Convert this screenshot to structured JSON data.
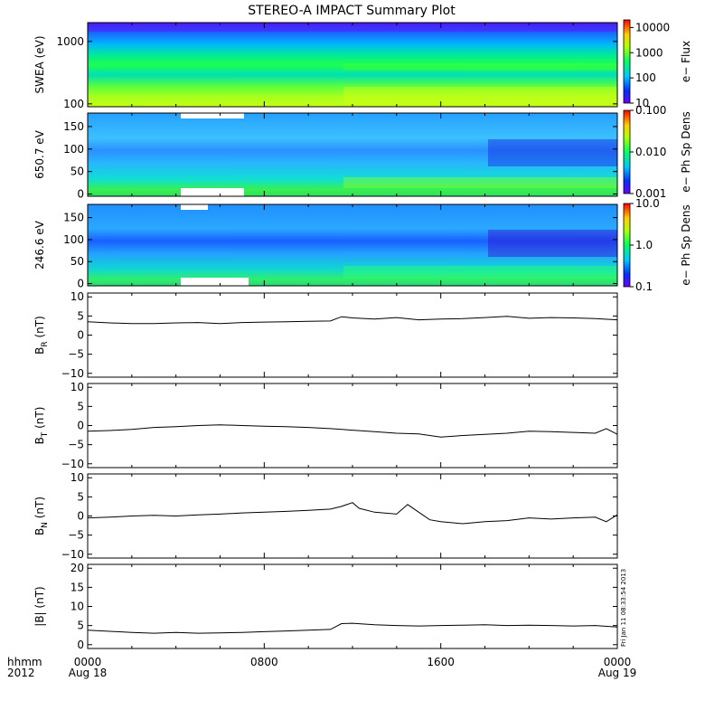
{
  "title": "STEREO-A IMPACT Summary Plot",
  "x_axis": {
    "row1_label": "hhmm",
    "row2_label": "2012",
    "ticks": [
      "0000",
      "0800",
      "1600",
      "0000"
    ],
    "dates": [
      "Aug 18",
      "",
      "",
      "Aug 19"
    ],
    "range_hours": [
      0,
      24
    ]
  },
  "timestamp": "Fri Jan 11 08:33:54 2013",
  "chart_data": [
    {
      "id": "swea",
      "type": "heatmap",
      "ylabel": "SWEA (eV)",
      "yscale": "log",
      "ylim": [
        90,
        2000
      ],
      "yticks": [
        100,
        1000
      ],
      "ytick_labels": [
        "100",
        "1000"
      ],
      "colorbar": {
        "label": "e− Flux",
        "scale": "log",
        "range": [
          10,
          20000
        ],
        "ticks": [
          10,
          100,
          1000,
          10000
        ],
        "tick_labels": [
          "10",
          "100",
          "1000",
          "10000"
        ],
        "colormap": "rainbow"
      }
    },
    {
      "id": "pad-650",
      "type": "heatmap",
      "ylabel": "650.7 eV",
      "ylim": [
        -5,
        180
      ],
      "yticks": [
        0,
        50,
        100,
        150
      ],
      "ytick_labels": [
        "0",
        "50",
        "100",
        "150"
      ],
      "colorbar": {
        "label": "e− Ph Sp Dens",
        "scale": "log",
        "range": [
          0.001,
          0.1
        ],
        "ticks": [
          0.001,
          0.01,
          0.1
        ],
        "tick_labels": [
          "0.001",
          "0.010",
          "0.100"
        ],
        "colormap": "rainbow"
      }
    },
    {
      "id": "pad-246",
      "type": "heatmap",
      "ylabel": "246.6 eV",
      "ylim": [
        -5,
        180
      ],
      "yticks": [
        0,
        50,
        100,
        150
      ],
      "ytick_labels": [
        "0",
        "50",
        "100",
        "150"
      ],
      "colorbar": {
        "label": "e− Ph Sp Dens",
        "scale": "log",
        "range": [
          0.1,
          10
        ],
        "ticks": [
          0.1,
          1,
          10
        ],
        "tick_labels": [
          "0.1",
          "1.0",
          "10.0"
        ],
        "colormap": "rainbow"
      }
    },
    {
      "id": "br",
      "type": "line",
      "ylabel": "B",
      "ylabel_sub": "R",
      "ylabel_unit": "(nT)",
      "ylim": [
        -11,
        11
      ],
      "yticks": [
        -10,
        -5,
        0,
        5,
        10
      ],
      "ytick_labels": [
        "−10",
        "−5",
        "0",
        "5",
        "10"
      ],
      "x": [
        0,
        1,
        2,
        3,
        4,
        5,
        6,
        7,
        8,
        9,
        10,
        11,
        11.5,
        12,
        13,
        14,
        15,
        16,
        17,
        18,
        19,
        20,
        21,
        22,
        23,
        24
      ],
      "y": [
        3.5,
        3.2,
        3.0,
        3.0,
        3.2,
        3.3,
        3.0,
        3.3,
        3.4,
        3.5,
        3.6,
        3.7,
        4.8,
        4.5,
        4.2,
        4.6,
        4.0,
        4.2,
        4.3,
        4.6,
        4.9,
        4.4,
        4.6,
        4.5,
        4.3,
        4.0
      ]
    },
    {
      "id": "bt",
      "type": "line",
      "ylabel": "B",
      "ylabel_sub": "T",
      "ylabel_unit": "(nT)",
      "ylim": [
        -11,
        11
      ],
      "yticks": [
        -10,
        -5,
        0,
        5,
        10
      ],
      "ytick_labels": [
        "−10",
        "−5",
        "0",
        "5",
        "10"
      ],
      "x": [
        0,
        1,
        2,
        3,
        4,
        5,
        6,
        7,
        8,
        9,
        10,
        11,
        12,
        13,
        14,
        15,
        16,
        17,
        18,
        19,
        20,
        21,
        22,
        23,
        23.5,
        24
      ],
      "y": [
        -1.5,
        -1.3,
        -1.0,
        -0.5,
        -0.3,
        0.0,
        0.2,
        0.0,
        -0.2,
        -0.3,
        -0.5,
        -0.8,
        -1.2,
        -1.6,
        -2.0,
        -2.2,
        -3.0,
        -2.6,
        -2.3,
        -2.0,
        -1.5,
        -1.6,
        -1.8,
        -2.0,
        -0.8,
        -2.3
      ]
    },
    {
      "id": "bn",
      "type": "line",
      "ylabel": "B",
      "ylabel_sub": "N",
      "ylabel_unit": "(nT)",
      "ylim": [
        -11,
        11
      ],
      "yticks": [
        -10,
        -5,
        0,
        5,
        10
      ],
      "ytick_labels": [
        "−10",
        "−5",
        "0",
        "5",
        "10"
      ],
      "x": [
        0,
        1,
        2,
        3,
        4,
        5,
        6,
        7,
        8,
        9,
        10,
        11,
        11.5,
        12,
        12.3,
        13,
        14,
        14.5,
        15,
        15.5,
        16,
        17,
        18,
        19,
        20,
        21,
        22,
        23,
        23.5,
        24
      ],
      "y": [
        -0.5,
        -0.3,
        0.0,
        0.2,
        0.0,
        0.3,
        0.5,
        0.8,
        1.0,
        1.2,
        1.5,
        1.8,
        2.5,
        3.5,
        2.0,
        1.0,
        0.5,
        3.0,
        1.0,
        -1.0,
        -1.5,
        -2.0,
        -1.5,
        -1.2,
        -0.5,
        -0.8,
        -0.5,
        -0.3,
        -1.5,
        0.3
      ]
    },
    {
      "id": "bmag",
      "type": "line",
      "ylabel": "|B|",
      "ylabel_unit": "(nT)",
      "ylim": [
        -1,
        21
      ],
      "yticks": [
        0,
        5,
        10,
        15,
        20
      ],
      "ytick_labels": [
        "0",
        "5",
        "10",
        "15",
        "20"
      ],
      "x": [
        0,
        1,
        2,
        3,
        4,
        5,
        6,
        7,
        8,
        9,
        10,
        11,
        11.5,
        12,
        13,
        14,
        15,
        16,
        17,
        18,
        19,
        20,
        21,
        22,
        23,
        24
      ],
      "y": [
        3.8,
        3.5,
        3.2,
        3.0,
        3.2,
        3.0,
        3.1,
        3.2,
        3.4,
        3.6,
        3.8,
        4.0,
        5.5,
        5.6,
        5.2,
        5.0,
        4.9,
        5.0,
        5.1,
        5.2,
        5.0,
        5.1,
        5.0,
        4.9,
        5.0,
        4.6
      ]
    }
  ]
}
